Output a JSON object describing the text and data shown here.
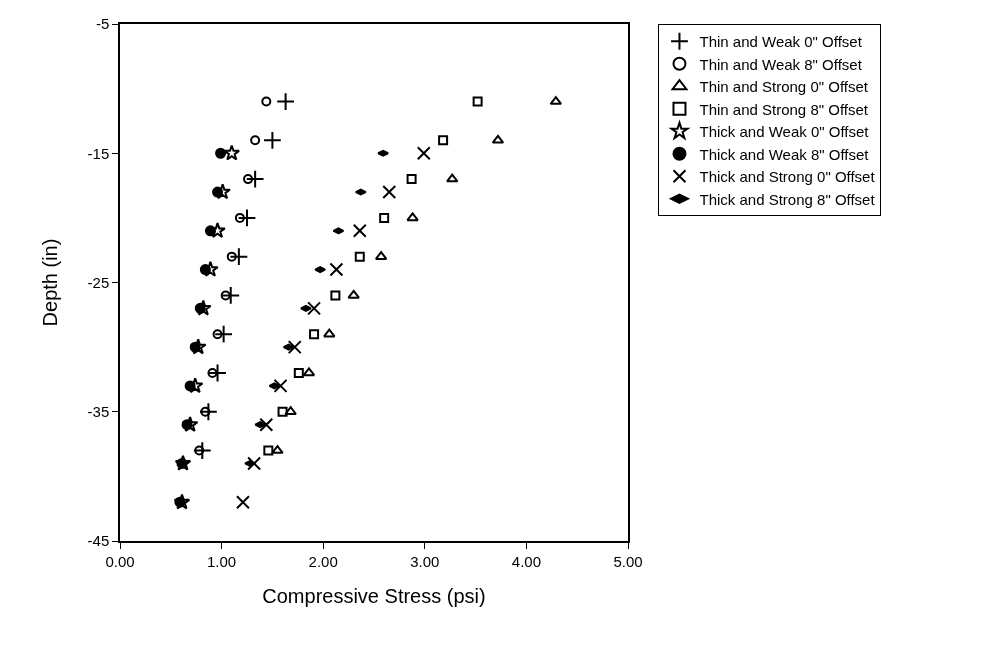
{
  "chart_data": {
    "type": "scatter",
    "xlabel": "Compressive Stress (psi)",
    "ylabel": "Depth (in)",
    "xlim": [
      0,
      5
    ],
    "xticks": [
      {
        "value": 0,
        "label": "0.00"
      },
      {
        "value": 1,
        "label": "1.00"
      },
      {
        "value": 2,
        "label": "2.00"
      },
      {
        "value": 3,
        "label": "3.00"
      },
      {
        "value": 4,
        "label": "4.00"
      },
      {
        "value": 5,
        "label": "5.00"
      }
    ],
    "ylim": [
      -45,
      -5
    ],
    "yticks": [
      -45,
      -35,
      -25,
      -15,
      -5
    ],
    "legend": "top right",
    "series": [
      {
        "name": "Thin and Weak 0\" Offset",
        "color": "#000000",
        "marker": "cross",
        "x": [
          1.63,
          1.5,
          1.33,
          1.25,
          1.17,
          1.09,
          1.02,
          0.96,
          0.87,
          0.81
        ],
        "values": [
          -11,
          -14,
          -17,
          -20,
          -23,
          -26,
          -29,
          -32,
          -35,
          -38
        ]
      },
      {
        "name": "Thin and Weak 8\" Offset",
        "color": "#000000",
        "marker": "circle",
        "x": [
          1.44,
          1.33,
          1.26,
          1.18,
          1.1,
          1.04,
          0.96,
          0.91,
          0.84,
          0.78
        ],
        "values": [
          -11,
          -14,
          -17,
          -20,
          -23,
          -26,
          -29,
          -32,
          -35,
          -38
        ]
      },
      {
        "name": "Thin and Strong 0\" Offset",
        "color": "#000000",
        "marker": "triangle",
        "x": [
          4.29,
          3.72,
          3.27,
          2.88,
          2.57,
          2.3,
          2.06,
          1.86,
          1.68,
          1.55
        ],
        "values": [
          -11,
          -14,
          -17,
          -20,
          -23,
          -26,
          -29,
          -32,
          -35,
          -38
        ]
      },
      {
        "name": "Thin and Strong 8\" Offset",
        "color": "#000000",
        "marker": "square",
        "x": [
          3.52,
          3.18,
          2.87,
          2.6,
          2.36,
          2.12,
          1.91,
          1.76,
          1.6,
          1.46
        ],
        "values": [
          -11,
          -14,
          -17,
          -20,
          -23,
          -26,
          -29,
          -32,
          -35,
          -38
        ]
      },
      {
        "name": "Thick and Weak 0\" Offset",
        "color": "#000000",
        "marker": "star",
        "x": [
          1.1,
          1.01,
          0.96,
          0.89,
          0.82,
          0.77,
          0.74,
          0.69,
          0.62,
          0.61
        ],
        "values": [
          -15,
          -18,
          -21,
          -24,
          -27,
          -30,
          -33,
          -36,
          -39,
          -42
        ]
      },
      {
        "name": "Thick and Weak 8\" Offset",
        "color": "#000000",
        "marker": "dot",
        "x": [
          0.99,
          0.96,
          0.89,
          0.84,
          0.79,
          0.74,
          0.69,
          0.66,
          0.61,
          0.59
        ],
        "values": [
          -15,
          -18,
          -21,
          -24,
          -27,
          -30,
          -33,
          -36,
          -39,
          -42
        ]
      },
      {
        "name": "Thick and Strong 0\" Offset",
        "color": "#000000",
        "marker": "x",
        "x": [
          2.99,
          2.65,
          2.36,
          2.13,
          1.91,
          1.72,
          1.58,
          1.44,
          1.32,
          1.21
        ],
        "values": [
          -15,
          -18,
          -21,
          -24,
          -27,
          -30,
          -33,
          -36,
          -39,
          -42
        ]
      },
      {
        "name": "Thick and Strong 8\" Offset",
        "color": "#000000",
        "marker": "diamond",
        "x": [
          2.59,
          2.37,
          2.15,
          1.97,
          1.83,
          1.66,
          1.52,
          1.38,
          1.28
        ],
        "values": [
          -15,
          -18,
          -21,
          -24,
          -27,
          -30,
          -33,
          -36,
          -39
        ]
      }
    ]
  }
}
